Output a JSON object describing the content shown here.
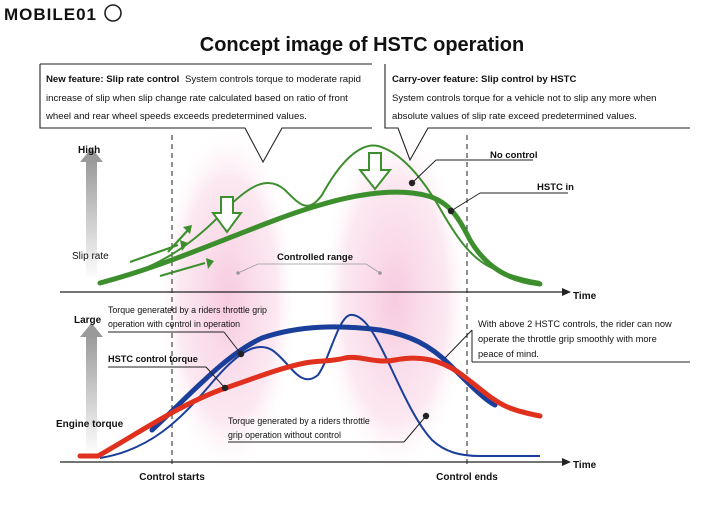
{
  "watermark": "MOBILE01",
  "title": "Concept image of HSTC operation",
  "callouts": {
    "new_feature": {
      "heading": "New feature: Slip rate control",
      "lines": [
        "System controls torque to moderate rapid",
        "increase of slip when slip change rate calculated based on ratio of front",
        "wheel and rear wheel speeds exceeds predetermined values."
      ]
    },
    "carry_over": {
      "heading": "Carry-over feature: Slip control by HSTC",
      "lines": [
        "System controls torque for a vehicle not to slip any more when",
        "absolute values of slip rate exceed predetermined values."
      ]
    }
  },
  "slip_chart": {
    "y_high": "High",
    "y_label": "Slip rate",
    "x_label": "Time",
    "no_control_label": "No control",
    "hstc_in_label": "HSTC in",
    "controlled_range_label": "Controlled range"
  },
  "torque_chart": {
    "y_large": "Large",
    "y_label": "Engine torque",
    "x_label": "Time",
    "with_control_lines": [
      "Torque generated by a riders throttle grip",
      "operation with control in operation"
    ],
    "hstc_torque_label": "HSTC control torque",
    "without_control_lines": [
      "Torque generated by a riders throttle",
      "grip operation without control"
    ],
    "note_lines": [
      "With above 2 HSTC controls, the rider can now",
      "operate the throttle grip smoothly with more",
      "peace of mind."
    ]
  },
  "bottom_labels": {
    "control_starts": "Control starts",
    "control_ends": "Control ends"
  },
  "colors": {
    "slip_green": "#3d8f2e",
    "torque_blue": "#1a3f9a",
    "torque_red": "#e0301e",
    "highlight_pink": "#f7c8de"
  }
}
